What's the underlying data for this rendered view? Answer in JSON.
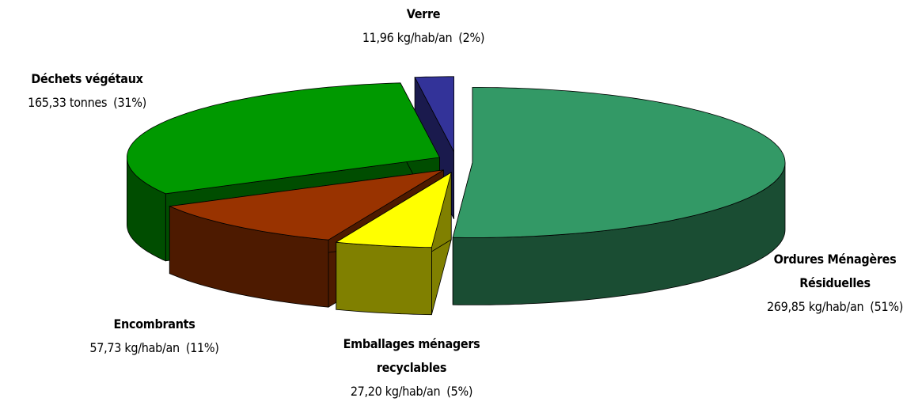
{
  "chart_data": {
    "type": "pie",
    "categories": [
      "Ordures Ménagères Résiduelles",
      "Emballages ménagers recyclables",
      "Encombrants",
      "Déchets végétaux",
      "Verre"
    ],
    "details": [
      "269,85 kg/hab/an",
      "27,20 kg/hab/an",
      "57,73 kg/hab/an",
      "165,33 tonnes",
      "11,96 kg/hab/an"
    ],
    "values": [
      51,
      5,
      11,
      31,
      2
    ],
    "value_labels": [
      "(51%)",
      "(5%)",
      "(11%)",
      "(31%)",
      "(2%)"
    ],
    "colors": [
      "#339966",
      "#ffff00",
      "#993300",
      "#009900",
      "#333399"
    ]
  }
}
